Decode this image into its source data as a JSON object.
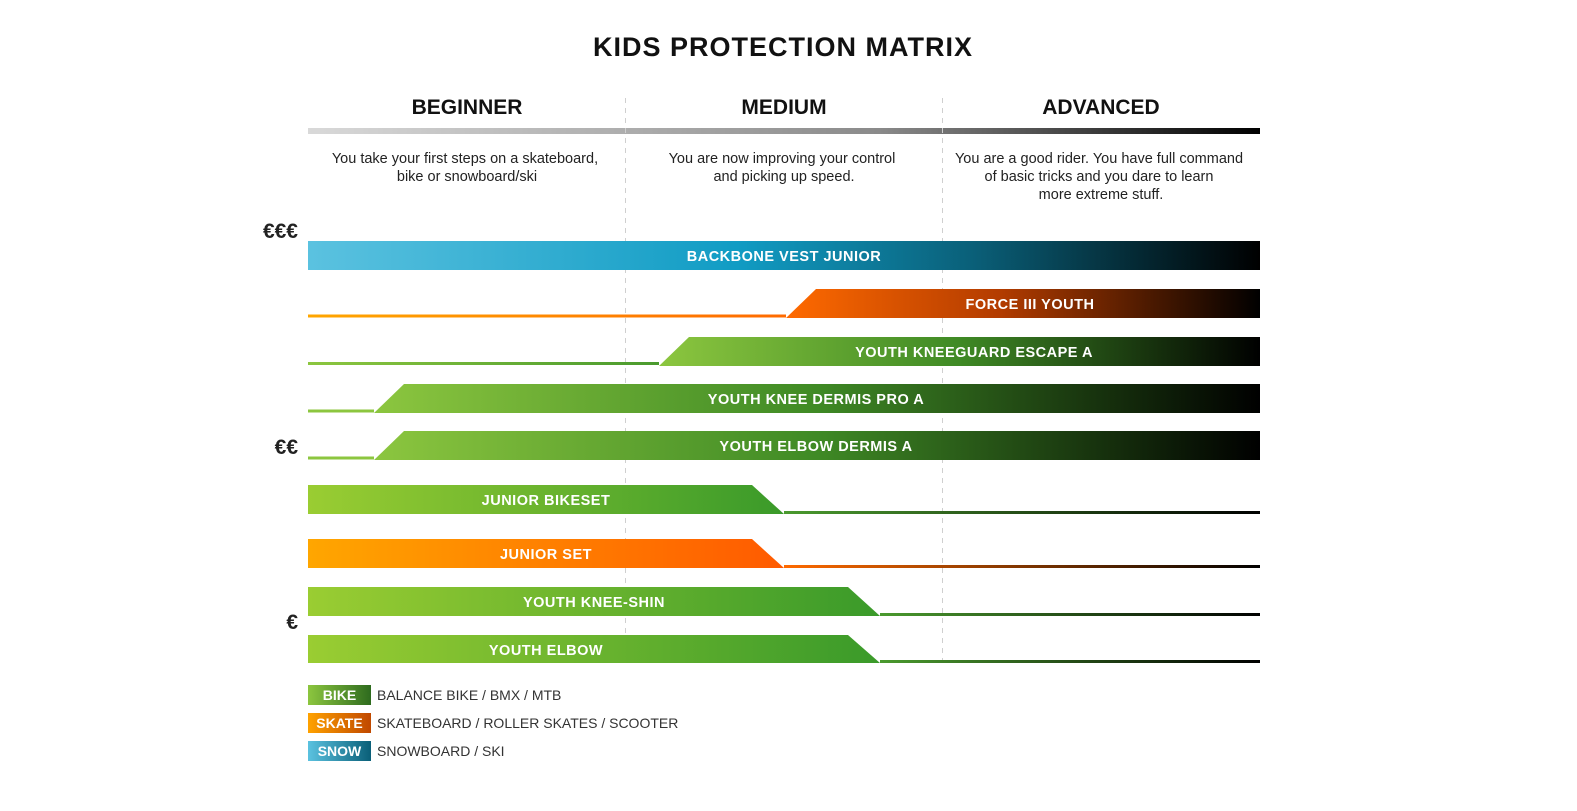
{
  "title": "KIDS PROTECTION MATRIX",
  "levels": [
    {
      "name": "BEGINNER",
      "description": [
        "You take your first steps on a skateboard,",
        "bike or snowboard/ski"
      ]
    },
    {
      "name": "MEDIUM",
      "description": [
        "You are now improving your control",
        "and picking up speed."
      ]
    },
    {
      "name": "ADVANCED",
      "description": [
        "You are a good rider. You have full command",
        "of basic tricks and you dare to learn",
        "more extreme stuff."
      ]
    }
  ],
  "price_labels": [
    "€€€",
    "€€",
    "€"
  ],
  "colors": {
    "bike": "#8cc63f",
    "bike_dark": "#2e6b1e",
    "skate": "#ffa200",
    "skate_dark": "#ee5a00",
    "snow": "#5bc2e0",
    "snow_dark": "#1a9ac2"
  },
  "products": [
    {
      "name": "BACKBONE VEST JUNIOR",
      "category": "snow",
      "coverage": "beginner-advanced"
    },
    {
      "name": "FORCE III YOUTH",
      "category": "skate",
      "coverage": "medium-advanced"
    },
    {
      "name": "YOUTH KNEEGUARD ESCAPE A",
      "category": "bike",
      "coverage": "medium-advanced"
    },
    {
      "name": "YOUTH KNEE DERMIS PRO A",
      "category": "bike",
      "coverage": "beginner-advanced"
    },
    {
      "name": "YOUTH ELBOW DERMIS A",
      "category": "bike",
      "coverage": "beginner-advanced"
    },
    {
      "name": "JUNIOR BIKESET",
      "category": "bike",
      "coverage": "beginner-medium"
    },
    {
      "name": "JUNIOR SET",
      "category": "skate",
      "coverage": "beginner-medium"
    },
    {
      "name": "YOUTH KNEE-SHIN",
      "category": "bike",
      "coverage": "beginner-medium"
    },
    {
      "name": "YOUTH ELBOW",
      "category": "bike",
      "coverage": "beginner-medium"
    }
  ],
  "legend": [
    {
      "tag": "BIKE",
      "text": "BALANCE BIKE / BMX / MTB",
      "category": "bike"
    },
    {
      "tag": "SKATE",
      "text": "SKATEBOARD / ROLLER SKATES / SCOOTER",
      "category": "skate"
    },
    {
      "tag": "SNOW",
      "text": "SNOWBOARD / SKI",
      "category": "snow"
    }
  ]
}
